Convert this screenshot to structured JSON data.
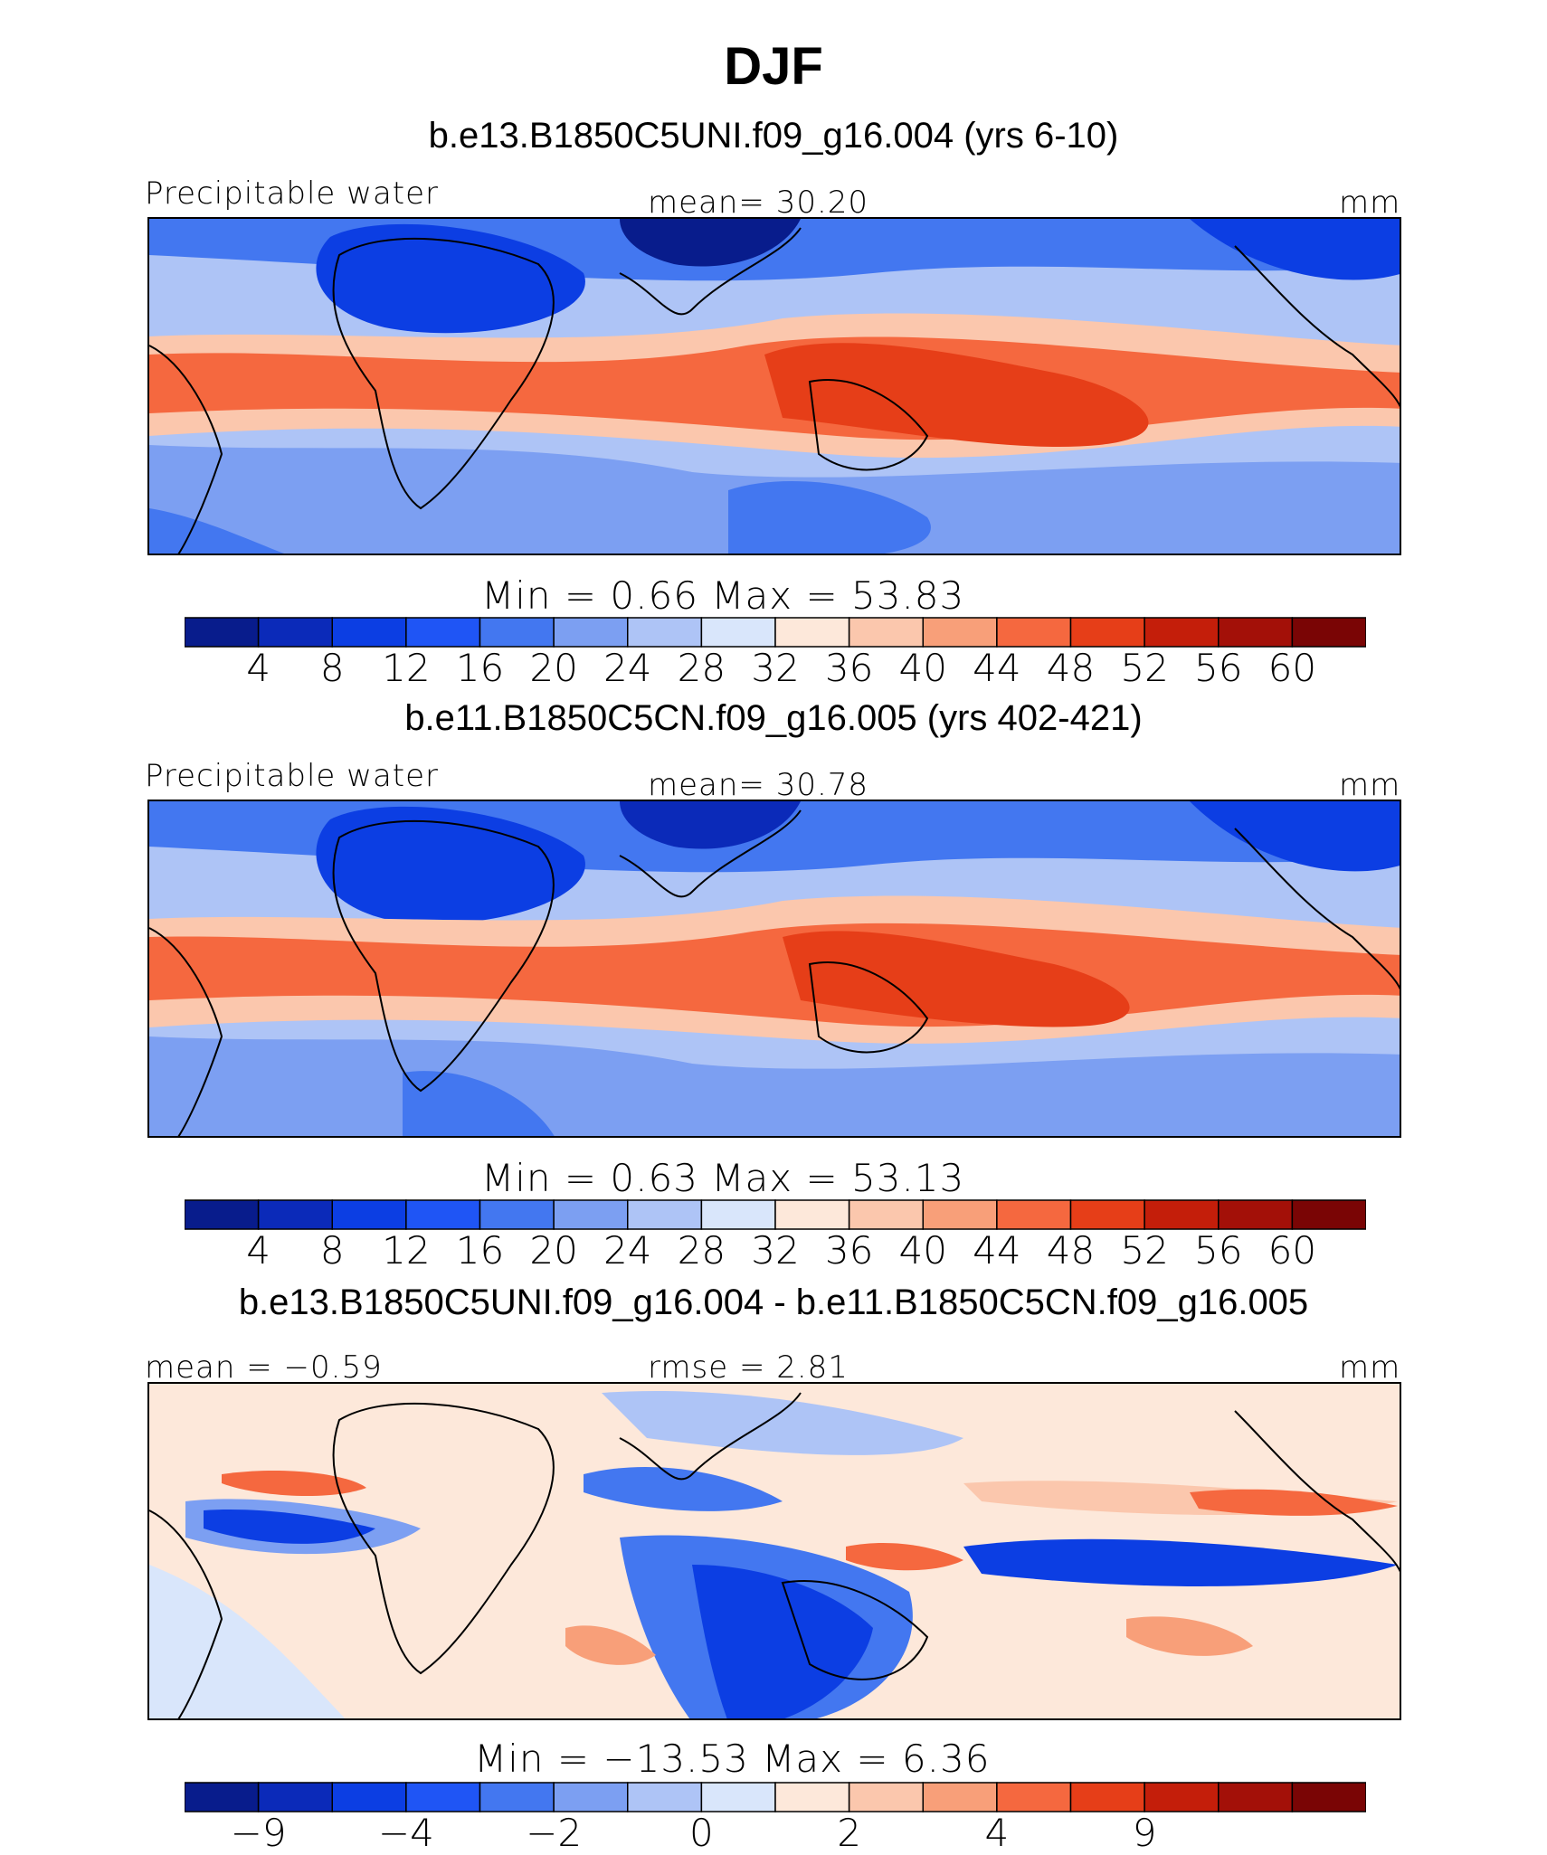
{
  "figure": {
    "title": "DJF"
  },
  "colors": {
    "abs_levels": [
      "#081c8c",
      "#0b2ab9",
      "#0c3ee3",
      "#1f55f5",
      "#4377f0",
      "#7c9ff2",
      "#aec4f6",
      "#d9e6fb",
      "#fde8da",
      "#fbc7ad",
      "#f89f79",
      "#f5683f",
      "#e63e18",
      "#c41e0a",
      "#a31008",
      "#7a0505"
    ],
    "diff_levels": [
      "#081c8c",
      "#0b2ab9",
      "#0c3ee3",
      "#1f55f5",
      "#4377f0",
      "#7c9ff2",
      "#aec4f6",
      "#d9e6fb",
      "#fde8da",
      "#fbc7ad",
      "#f89f79",
      "#f5683f",
      "#e63e18",
      "#c41e0a",
      "#a31008",
      "#7a0505"
    ]
  },
  "chart_data": [
    {
      "type": "heatmap",
      "title": "b.e13.B1850C5UNI.f09_g16.004 (yrs 6-10)",
      "left_label": "Precipitable water",
      "center_label": "mean=   30.20",
      "right_label": "mm",
      "mean": 30.2,
      "min_max_label": "Min  =    0.66  Max  =   53.83",
      "min": 0.66,
      "max": 53.83,
      "colorbar_levels": [
        4,
        8,
        12,
        16,
        20,
        24,
        28,
        32,
        36,
        40,
        44,
        48,
        52,
        56,
        60
      ],
      "colorbar_ticks": [
        "4",
        "8",
        "12",
        "16",
        "20",
        "24",
        "28",
        "32",
        "36",
        "40",
        "44",
        "48",
        "52",
        "56",
        "60"
      ]
    },
    {
      "type": "heatmap",
      "title": "b.e11.B1850C5CN.f09_g16.005 (yrs 402-421)",
      "left_label": "Precipitable water",
      "center_label": "mean=   30.78",
      "right_label": "mm",
      "mean": 30.78,
      "min_max_label": "Min  =    0.63  Max  =   53.13",
      "min": 0.63,
      "max": 53.13,
      "colorbar_levels": [
        4,
        8,
        12,
        16,
        20,
        24,
        28,
        32,
        36,
        40,
        44,
        48,
        52,
        56,
        60
      ],
      "colorbar_ticks": [
        "4",
        "8",
        "12",
        "16",
        "20",
        "24",
        "28",
        "32",
        "36",
        "40",
        "44",
        "48",
        "52",
        "56",
        "60"
      ]
    },
    {
      "type": "heatmap",
      "title": "b.e13.B1850C5UNI.f09_g16.004 - b.e11.B1850C5CN.f09_g16.005",
      "left_label": "mean  =   −0.59",
      "center_label": "rmse  =    2.81",
      "right_label": "mm",
      "mean": -0.59,
      "rmse": 2.81,
      "min_max_label": "Min  =  −13.53  Max  =    6.36",
      "min": -13.53,
      "max": 6.36,
      "colorbar_ticks": [
        "−9",
        "−4",
        "−2",
        "0",
        "2",
        "4",
        "9"
      ],
      "colorbar_tick_positions": [
        1,
        3,
        5,
        7,
        9,
        11,
        13
      ]
    }
  ]
}
